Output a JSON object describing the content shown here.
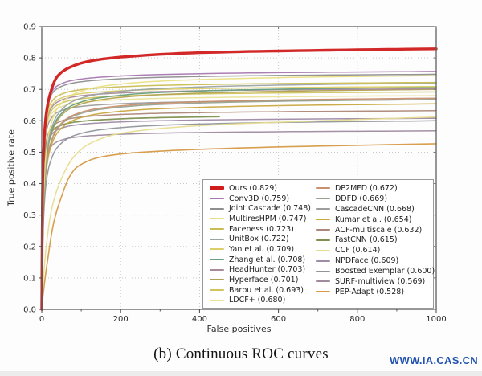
{
  "page": {
    "caption": "(b) Continuous ROC curves",
    "watermark": "WWW.IA.CAS.CN"
  },
  "chart_data": {
    "type": "line",
    "title": "",
    "xlabel": "False positives",
    "ylabel": "True positive rate",
    "xlim": [
      0,
      1000
    ],
    "ylim": [
      0.0,
      0.9
    ],
    "grid": "dotted",
    "grid_color": "#c9c9c9",
    "frame_color": "#5f5f5f",
    "legend_position": "lower-right-inside",
    "legend_columns": 2,
    "legend_column_split": 12,
    "x_ticks": [
      {
        "v": 0,
        "label": "0"
      },
      {
        "v": 200,
        "label": "200"
      },
      {
        "v": 400,
        "label": "400"
      },
      {
        "v": 600,
        "label": "600"
      },
      {
        "v": 800,
        "label": "800"
      },
      {
        "v": 1000,
        "label": "1000"
      }
    ],
    "x_minor_ticks": [
      100,
      300,
      500,
      700,
      900
    ],
    "y_ticks": [
      {
        "v": 0.0,
        "label": "0.0"
      },
      {
        "v": 0.1,
        "label": "0.1"
      },
      {
        "v": 0.2,
        "label": "0.2"
      },
      {
        "v": 0.3,
        "label": "0.3"
      },
      {
        "v": 0.4,
        "label": "0.4"
      },
      {
        "v": 0.5,
        "label": "0.5"
      },
      {
        "v": 0.6,
        "label": "0.6"
      },
      {
        "v": 0.7,
        "label": "0.7"
      },
      {
        "v": 0.8,
        "label": "0.8"
      },
      {
        "v": 0.9,
        "label": "0.9"
      }
    ],
    "profiles": {
      "ours": [
        [
          0,
          0
        ],
        [
          2,
          0.45
        ],
        [
          5,
          0.62
        ],
        [
          10,
          0.73
        ],
        [
          20,
          0.82
        ],
        [
          40,
          0.895
        ],
        [
          70,
          0.928
        ],
        [
          120,
          0.952
        ],
        [
          200,
          0.968
        ],
        [
          400,
          0.985
        ],
        [
          700,
          0.994
        ],
        [
          1000,
          1.0
        ]
      ],
      "fast": [
        [
          0,
          0
        ],
        [
          2,
          0.5
        ],
        [
          5,
          0.72
        ],
        [
          10,
          0.83
        ],
        [
          20,
          0.9
        ],
        [
          40,
          0.94
        ],
        [
          80,
          0.963
        ],
        [
          150,
          0.976
        ],
        [
          300,
          0.987
        ],
        [
          600,
          0.995
        ],
        [
          1000,
          1.0
        ]
      ],
      "medium": [
        [
          0,
          0
        ],
        [
          2,
          0.3
        ],
        [
          5,
          0.5
        ],
        [
          10,
          0.65
        ],
        [
          20,
          0.77
        ],
        [
          40,
          0.86
        ],
        [
          80,
          0.92
        ],
        [
          150,
          0.953
        ],
        [
          300,
          0.976
        ],
        [
          600,
          0.991
        ],
        [
          1000,
          1.0
        ]
      ],
      "slow": [
        [
          0,
          0
        ],
        [
          3,
          0.12
        ],
        [
          10,
          0.3
        ],
        [
          25,
          0.52
        ],
        [
          50,
          0.68
        ],
        [
          80,
          0.79
        ],
        [
          120,
          0.86
        ],
        [
          200,
          0.915
        ],
        [
          400,
          0.955
        ],
        [
          700,
          0.98
        ],
        [
          1000,
          1.0
        ]
      ],
      "pep": [
        [
          0,
          0
        ],
        [
          5,
          0.12
        ],
        [
          15,
          0.3
        ],
        [
          30,
          0.52
        ],
        [
          50,
          0.68
        ],
        [
          70,
          0.8
        ],
        [
          90,
          0.86
        ],
        [
          150,
          0.92
        ],
        [
          250,
          0.948
        ],
        [
          500,
          0.974
        ],
        [
          1000,
          1.0
        ]
      ]
    },
    "series": [
      {
        "label": "Ours",
        "auc": "0.829",
        "color": "#d01c1c",
        "final": 0.829,
        "profile": "ours",
        "width": 3.4
      },
      {
        "label": "Conv3D",
        "auc": "0.759",
        "color": "#a678b0",
        "final": 0.757,
        "profile": "fast",
        "width": 1.5
      },
      {
        "label": "Joint Cascade",
        "auc": "0.748",
        "color": "#8f8f8f",
        "final": 0.748,
        "profile": "fast",
        "width": 1.5
      },
      {
        "label": "MultiresHPM",
        "auc": "0.747",
        "color": "#e9e084",
        "final": 0.744,
        "profile": "medium",
        "width": 1.5
      },
      {
        "label": "Faceness",
        "auc": "0.723",
        "color": "#c9bd52",
        "final": 0.722,
        "profile": "fast",
        "width": 1.5
      },
      {
        "label": "UnitBox",
        "auc": "0.722",
        "color": "#9ba3a3",
        "final": 0.72,
        "profile": "medium",
        "width": 1.5
      },
      {
        "label": "Yan et al.",
        "auc": "0.709",
        "color": "#dccf6a",
        "final": 0.709,
        "profile": "fast",
        "width": 1.5
      },
      {
        "label": "Zhang et al.",
        "auc": "0.708",
        "color": "#67a07d",
        "final": 0.707,
        "profile": "medium",
        "width": 1.5
      },
      {
        "label": "HeadHunter",
        "auc": "0.703",
        "color": "#a78b9b",
        "final": 0.702,
        "profile": "fast",
        "width": 1.5
      },
      {
        "label": "Hyperface",
        "auc": "0.701",
        "color": "#b2a151",
        "final": 0.7,
        "profile": "medium",
        "width": 1.5
      },
      {
        "label": "Barbu et al.",
        "auc": "0.693",
        "color": "#d0c45e",
        "final": 0.692,
        "profile": "fast",
        "width": 1.5
      },
      {
        "label": "LDCF+",
        "auc": "0.680",
        "color": "#eae396",
        "final": 0.68,
        "profile": "fast",
        "width": 1.5
      },
      {
        "label": "DP2MFD",
        "auc": "0.672",
        "color": "#c98f6e",
        "final": 0.672,
        "profile": "medium",
        "width": 1.5
      },
      {
        "label": "DDFD",
        "auc": "0.669",
        "color": "#97a28f",
        "final": 0.668,
        "profile": "medium",
        "width": 1.5
      },
      {
        "label": "CascadeCNN",
        "auc": "0.668",
        "color": "#9c9c9c",
        "final": 0.667,
        "profile": "fast",
        "width": 1.5
      },
      {
        "label": "Kumar et al.",
        "auc": "0.654",
        "color": "#c9a83e",
        "final": 0.654,
        "profile": "medium",
        "width": 1.5
      },
      {
        "label": "ACF-multiscale",
        "auc": "0.632",
        "color": "#ad8778",
        "final": 0.632,
        "profile": "fast",
        "width": 1.5
      },
      {
        "label": "FastCNN",
        "auc": "0.615",
        "color": "#7e9050",
        "final": 0.618,
        "profile": "fast",
        "width": 1.7,
        "end_x": 460
      },
      {
        "label": "CCF",
        "auc": "0.614",
        "color": "#e7dd8f",
        "final": 0.612,
        "profile": "slow",
        "width": 1.5
      },
      {
        "label": "NPDFace",
        "auc": "0.609",
        "color": "#9e8ba6",
        "final": 0.608,
        "profile": "fast",
        "width": 1.5
      },
      {
        "label": "Boosted Exemplar",
        "auc": "0.600",
        "color": "#8f949b",
        "final": 0.6,
        "profile": "medium",
        "width": 1.5
      },
      {
        "label": "SURF-multiview",
        "auc": "0.569",
        "color": "#9f8a9e",
        "final": 0.568,
        "profile": "fast",
        "width": 1.5
      },
      {
        "label": "PEP-Adapt",
        "auc": "0.528",
        "color": "#d69a46",
        "final": 0.527,
        "profile": "pep",
        "width": 1.6
      }
    ]
  }
}
